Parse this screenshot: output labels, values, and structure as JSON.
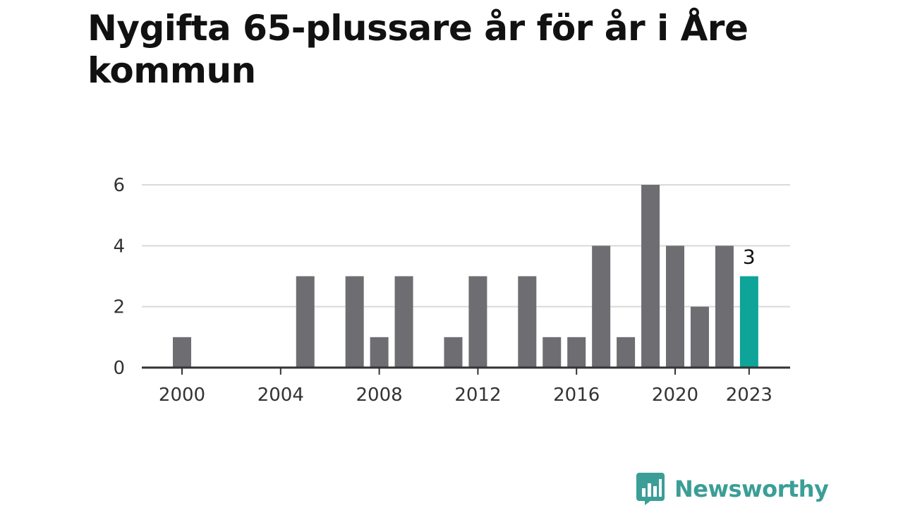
{
  "title": "Nygifta 65-plussare år för år i Åre kommun",
  "brand": {
    "name": "Newsworthy",
    "icon": "newsworthy-logo-icon",
    "color": "#3b9e97"
  },
  "colors": {
    "bar": "#6e6d72",
    "highlight": "#0ea49a",
    "grid": "#d9d9d9",
    "axis": "#333333"
  },
  "chart_data": {
    "type": "bar",
    "title": "Nygifta 65-plussare år för år i Åre kommun",
    "xlabel": "",
    "ylabel": "",
    "categories": [
      2000,
      2001,
      2002,
      2003,
      2004,
      2005,
      2006,
      2007,
      2008,
      2009,
      2010,
      2011,
      2012,
      2013,
      2014,
      2015,
      2016,
      2017,
      2018,
      2019,
      2020,
      2021,
      2022,
      2023
    ],
    "values": [
      1,
      0,
      0,
      0,
      0,
      3,
      0,
      3,
      1,
      3,
      0,
      1,
      3,
      0,
      3,
      1,
      1,
      4,
      1,
      6,
      4,
      2,
      4,
      3
    ],
    "ylim": [
      0,
      6
    ],
    "yticks": [
      0,
      2,
      4,
      6
    ],
    "xticks": [
      2000,
      2004,
      2008,
      2012,
      2016,
      2020,
      2023
    ],
    "highlight": {
      "category": 2023,
      "label": "3"
    },
    "grid": true,
    "legend": "none"
  }
}
